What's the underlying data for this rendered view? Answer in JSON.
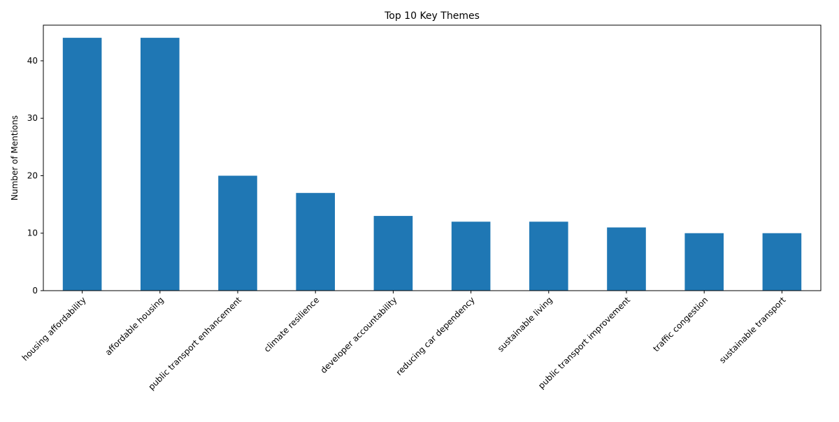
{
  "chart_data": {
    "type": "bar",
    "title": "Top 10 Key Themes",
    "xlabel": "",
    "ylabel": "Number of Mentions",
    "categories": [
      "housing affordability",
      "affordable housing",
      "public transport enhancement",
      "climate resilience",
      "developer accountability",
      "reducing car dependency",
      "sustainable living",
      "public transport improvement",
      "traffic congestion",
      "sustainable transport"
    ],
    "values": [
      44,
      44,
      20,
      17,
      13,
      12,
      12,
      11,
      10,
      10
    ],
    "ylim": [
      0,
      46.2
    ],
    "yticks": [
      0,
      10,
      20,
      30,
      40
    ],
    "grid": false,
    "bar_color": "#1f77b4"
  }
}
